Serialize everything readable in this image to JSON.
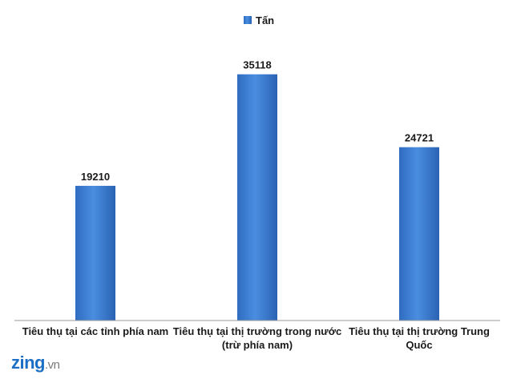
{
  "chart_data": {
    "type": "bar",
    "categories": [
      [
        "Tiêu thụ tại các tỉnh phía nam"
      ],
      [
        "Tiêu thụ tại thị trường trong nước",
        "(trừ phía nam)"
      ],
      [
        "Tiêu thụ tại thị trường Trung",
        "Quốc"
      ]
    ],
    "series": [
      {
        "name": "Tấn",
        "values": [
          19210,
          35118,
          24721
        ],
        "color": "#3a7fd5"
      }
    ],
    "ylim": [
      0,
      40000
    ],
    "grid": false,
    "legend_position": "top-center",
    "data_labels": [
      "19210",
      "35118",
      "24721"
    ]
  },
  "logo": {
    "main": "zing",
    "suffix": ".vn"
  }
}
